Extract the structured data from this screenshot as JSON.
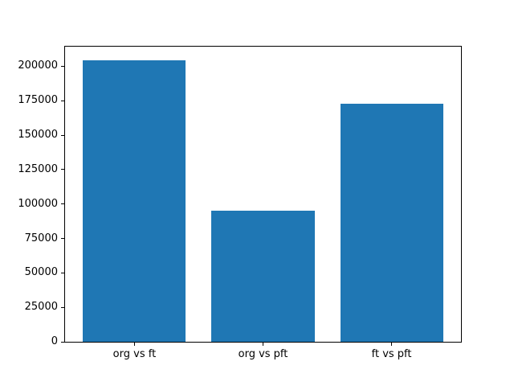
{
  "figure": {
    "background": "#ffffff"
  },
  "chart_data": {
    "type": "bar",
    "categories": [
      "org vs ft",
      "org vs pft",
      "ft vs pft"
    ],
    "values": [
      204000,
      95000,
      173000
    ],
    "title": "",
    "xlabel": "",
    "ylabel": "",
    "ylim": [
      0,
      214200
    ],
    "yticks": [
      0,
      25000,
      50000,
      75000,
      100000,
      125000,
      150000,
      175000,
      200000
    ],
    "bar_color": "#1f77b4",
    "axis_color": "#000000",
    "tick_label_color": "#000000",
    "grid": false,
    "legend": null,
    "bar_width_fraction": 0.8,
    "x_edge_margin": 0.54
  }
}
